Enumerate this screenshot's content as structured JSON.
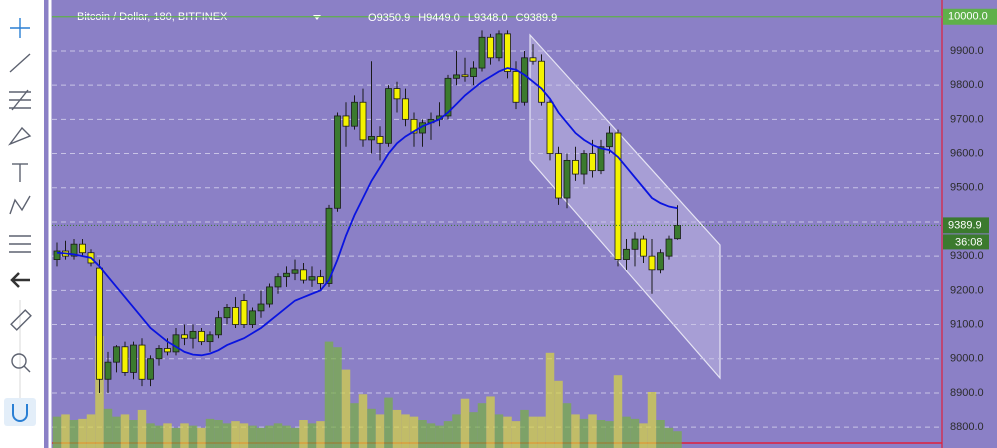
{
  "chart_data": {
    "type": "candlestick",
    "title": "Bitcoin / Dollar, 180, BITFINEX",
    "ohlc_labels": [
      "O",
      "H",
      "L",
      "C"
    ],
    "ohlc_values": [
      9350.9,
      {
        "value": 9449.0,
        "label": "9449.0"
      },
      {
        "value": 9348.0,
        "label": "9348.0"
      },
      9389.9
    ],
    "ylim": [
      8739,
      10049
    ],
    "yticks": [
      {
        "value": 8800,
        "label": "8800.0"
      },
      {
        "value": 8900,
        "label": "8900.0"
      },
      {
        "value": 9000,
        "label": "9000.0"
      },
      {
        "value": 9100,
        "label": "9100.0"
      },
      {
        "value": 9200,
        "label": "9200.0"
      },
      {
        "value": 9300,
        "label": "9300.0"
      },
      {
        "value": 9400,
        "label": "9400.0"
      },
      {
        "value": 9500,
        "label": "9500.0"
      },
      {
        "value": 9600,
        "label": "9600.0"
      },
      {
        "value": 9700,
        "label": "9700.0"
      },
      {
        "value": 9800,
        "label": "9800.0"
      },
      {
        "value": 9900,
        "label": "9900.0"
      }
    ],
    "alert_level": {
      "value": 10000,
      "label": "10000.0"
    },
    "last_price": 9389.9,
    "countdown": "36:08",
    "grid": true,
    "up_color": "#3b7a2e",
    "down_color": "#f4f200",
    "ma_color": "#0a14e0",
    "volume_up_color": "#78b040",
    "volume_down_color": "#d9d640",
    "volume_lim": [
      0,
      100
    ],
    "candles": [
      [
        9290,
        9340,
        9270,
        9315
      ],
      [
        9315,
        9345,
        9290,
        9300
      ],
      [
        9300,
        9350,
        9290,
        9335
      ],
      [
        9335,
        9350,
        9300,
        9310
      ],
      [
        9310,
        9320,
        9270,
        9280
      ],
      [
        9265,
        9290,
        8900,
        8940
      ],
      [
        8940,
        9020,
        8900,
        8990
      ],
      [
        8990,
        9040,
        8960,
        9035
      ],
      [
        9035,
        9050,
        8950,
        8960
      ],
      [
        8960,
        9050,
        8940,
        9040
      ],
      [
        9040,
        9060,
        8920,
        8940
      ],
      [
        8940,
        9010,
        8920,
        9000
      ],
      [
        9000,
        9040,
        8980,
        9030
      ],
      [
        9030,
        9060,
        9010,
        9020
      ],
      [
        9020,
        9090,
        9010,
        9070
      ],
      [
        9070,
        9100,
        9040,
        9060
      ],
      [
        9060,
        9100,
        9030,
        9080
      ],
      [
        9080,
        9090,
        9040,
        9050
      ],
      [
        9050,
        9080,
        9020,
        9070
      ],
      [
        9070,
        9140,
        9060,
        9120
      ],
      [
        9120,
        9160,
        9100,
        9150
      ],
      [
        9150,
        9180,
        9090,
        9100
      ],
      [
        9170,
        9190,
        9090,
        9100
      ],
      [
        9100,
        9150,
        9090,
        9140
      ],
      [
        9140,
        9200,
        9120,
        9160
      ],
      [
        9160,
        9220,
        9150,
        9210
      ],
      [
        9210,
        9250,
        9190,
        9240
      ],
      [
        9240,
        9270,
        9210,
        9250
      ],
      [
        9250,
        9290,
        9230,
        9260
      ],
      [
        9260,
        9280,
        9220,
        9230
      ],
      [
        9230,
        9270,
        9210,
        9240
      ],
      [
        9240,
        9260,
        9200,
        9220
      ],
      [
        9220,
        9450,
        9210,
        9440
      ],
      [
        9440,
        9720,
        9430,
        9710
      ],
      [
        9710,
        9750,
        9620,
        9680
      ],
      [
        9680,
        9770,
        9670,
        9750
      ],
      [
        9750,
        9790,
        9620,
        9640
      ],
      [
        9640,
        9870,
        9600,
        9650
      ],
      [
        9650,
        9680,
        9580,
        9630
      ],
      [
        9630,
        9800,
        9620,
        9790
      ],
      [
        9790,
        9810,
        9720,
        9760
      ],
      [
        9760,
        9790,
        9680,
        9700
      ],
      [
        9700,
        9720,
        9620,
        9660
      ],
      [
        9660,
        9700,
        9620,
        9690
      ],
      [
        9690,
        9720,
        9640,
        9700
      ],
      [
        9700,
        9750,
        9680,
        9710
      ],
      [
        9710,
        9830,
        9700,
        9820
      ],
      [
        9820,
        9900,
        9800,
        9830
      ],
      [
        9830,
        9880,
        9810,
        9825
      ],
      [
        9825,
        9870,
        9800,
        9850
      ],
      [
        9850,
        9960,
        9840,
        9940
      ],
      [
        9940,
        9950,
        9860,
        9880
      ],
      [
        9880,
        9960,
        9870,
        9950
      ],
      [
        9950,
        9960,
        9820,
        9840
      ],
      [
        9840,
        9870,
        9730,
        9750
      ],
      [
        9750,
        9900,
        9740,
        9880
      ],
      [
        9880,
        9920,
        9860,
        9870
      ],
      [
        9870,
        9890,
        9740,
        9750
      ],
      [
        9750,
        9760,
        9580,
        9600
      ],
      [
        9600,
        9620,
        9450,
        9470
      ],
      [
        9470,
        9600,
        9440,
        9580
      ],
      [
        9580,
        9620,
        9520,
        9540
      ],
      [
        9540,
        9610,
        9510,
        9600
      ],
      [
        9600,
        9640,
        9530,
        9550
      ],
      [
        9550,
        9640,
        9540,
        9620
      ],
      [
        9620,
        9680,
        9600,
        9660
      ],
      [
        9660,
        9670,
        9270,
        9290
      ],
      [
        9290,
        9350,
        9260,
        9320
      ],
      [
        9320,
        9370,
        9270,
        9350
      ],
      [
        9350,
        9360,
        9280,
        9300
      ],
      [
        9300,
        9350,
        9190,
        9260
      ],
      [
        9260,
        9320,
        9250,
        9310
      ],
      [
        9300,
        9360,
        9290,
        9350
      ],
      [
        9350.9,
        9449.0,
        9348.0,
        9389.9
      ]
    ],
    "ma": [
      9310,
      9308,
      9305,
      9300,
      9295,
      9270,
      9240,
      9210,
      9180,
      9150,
      9120,
      9090,
      9070,
      9050,
      9035,
      9020,
      9012,
      9010,
      9015,
      9025,
      9040,
      9050,
      9060,
      9075,
      9090,
      9110,
      9130,
      9150,
      9170,
      9180,
      9190,
      9200,
      9230,
      9290,
      9360,
      9420,
      9470,
      9520,
      9560,
      9600,
      9630,
      9650,
      9665,
      9680,
      9690,
      9700,
      9720,
      9745,
      9770,
      9790,
      9810,
      9825,
      9840,
      9850,
      9845,
      9830,
      9810,
      9790,
      9760,
      9720,
      9690,
      9660,
      9640,
      9625,
      9615,
      9610,
      9590,
      9560,
      9530,
      9500,
      9470,
      9455,
      9445,
      9440
    ],
    "volumes": [
      28,
      30,
      25,
      26,
      30,
      100,
      35,
      28,
      30,
      25,
      34,
      22,
      20,
      22,
      18,
      22,
      20,
      18,
      26,
      25,
      22,
      24,
      22,
      20,
      18,
      20,
      22,
      20,
      18,
      25,
      22,
      24,
      95,
      90,
      70,
      40,
      48,
      35,
      30,
      45,
      34,
      30,
      28,
      25,
      22,
      20,
      24,
      30,
      44,
      32,
      40,
      46,
      30,
      28,
      24,
      34,
      28,
      28,
      85,
      60,
      40,
      30,
      26,
      30,
      25,
      24,
      65,
      28,
      26,
      22,
      50,
      25,
      18,
      15
    ]
  }
}
